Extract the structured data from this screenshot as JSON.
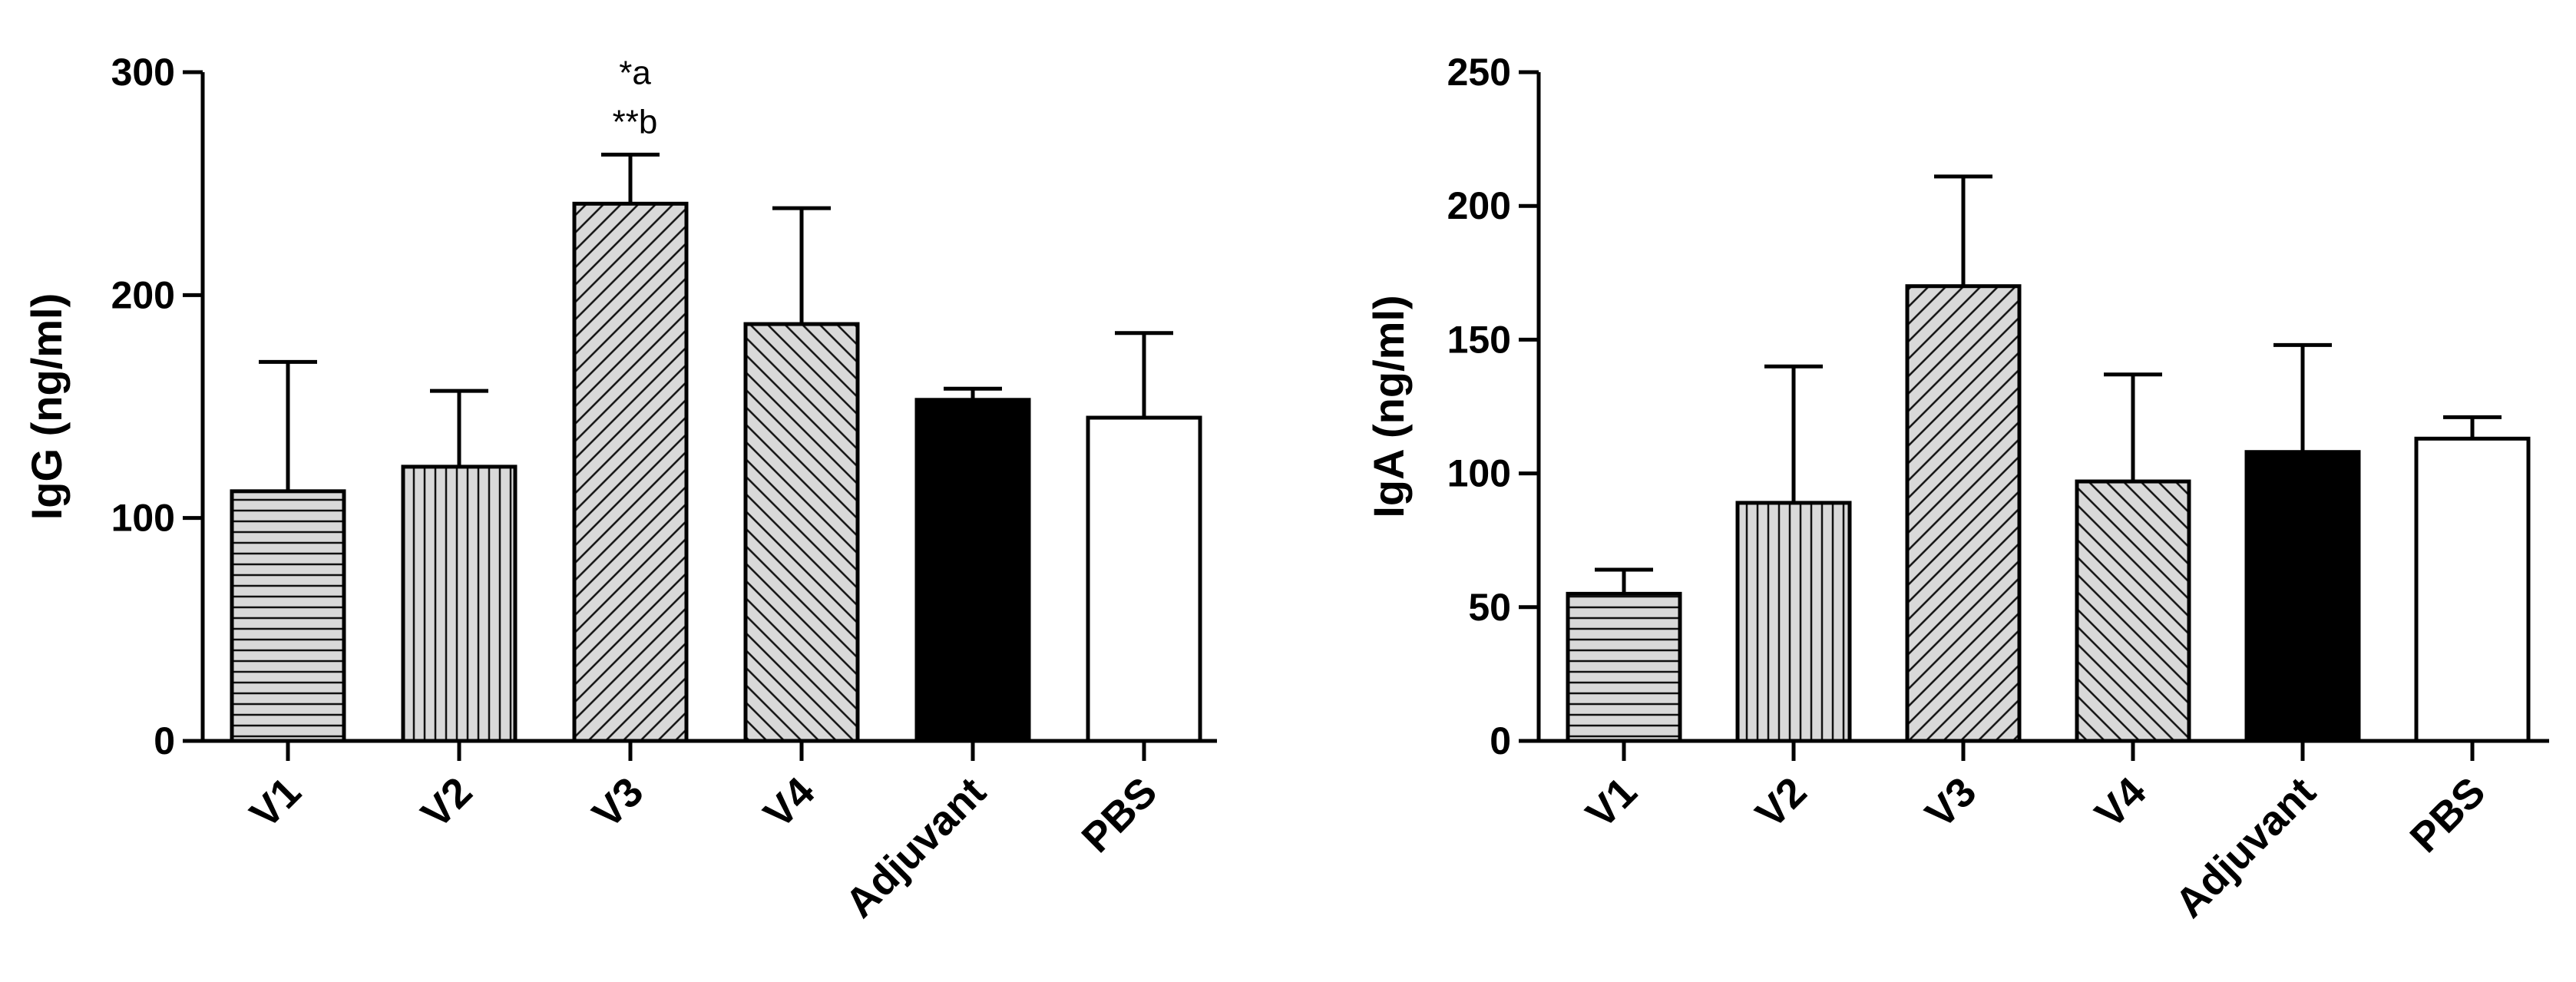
{
  "chart_data": [
    {
      "type": "bar",
      "categories": [
        "V1",
        "V2",
        "V3",
        "V4",
        "Adjuvant",
        "PBS"
      ],
      "values": [
        112,
        123,
        241,
        187,
        153,
        145
      ],
      "errors": [
        58,
        34,
        22,
        52,
        5,
        38
      ],
      "fills": [
        "hlines",
        "vlines",
        "diag-up",
        "diag-down",
        "solid-black",
        "white"
      ],
      "ylabel": "IgG (ng/ml)",
      "ylim": [
        0,
        300
      ],
      "yticks": [
        0,
        100,
        200,
        300
      ],
      "annotations": [
        {
          "category": "V3",
          "lines": [
            "*a",
            "**b"
          ]
        }
      ]
    },
    {
      "type": "bar",
      "categories": [
        "V1",
        "V2",
        "V3",
        "V4",
        "Adjuvant",
        "PBS"
      ],
      "values": [
        55,
        89,
        170,
        97,
        108,
        113
      ],
      "errors": [
        9,
        51,
        41,
        40,
        40,
        8
      ],
      "fills": [
        "hlines",
        "vlines",
        "diag-up",
        "diag-down",
        "solid-black",
        "white"
      ],
      "ylabel": "IgA (ng/ml)",
      "ylim": [
        0,
        250
      ],
      "yticks": [
        0,
        50,
        100,
        150,
        200,
        250
      ],
      "annotations": []
    }
  ]
}
